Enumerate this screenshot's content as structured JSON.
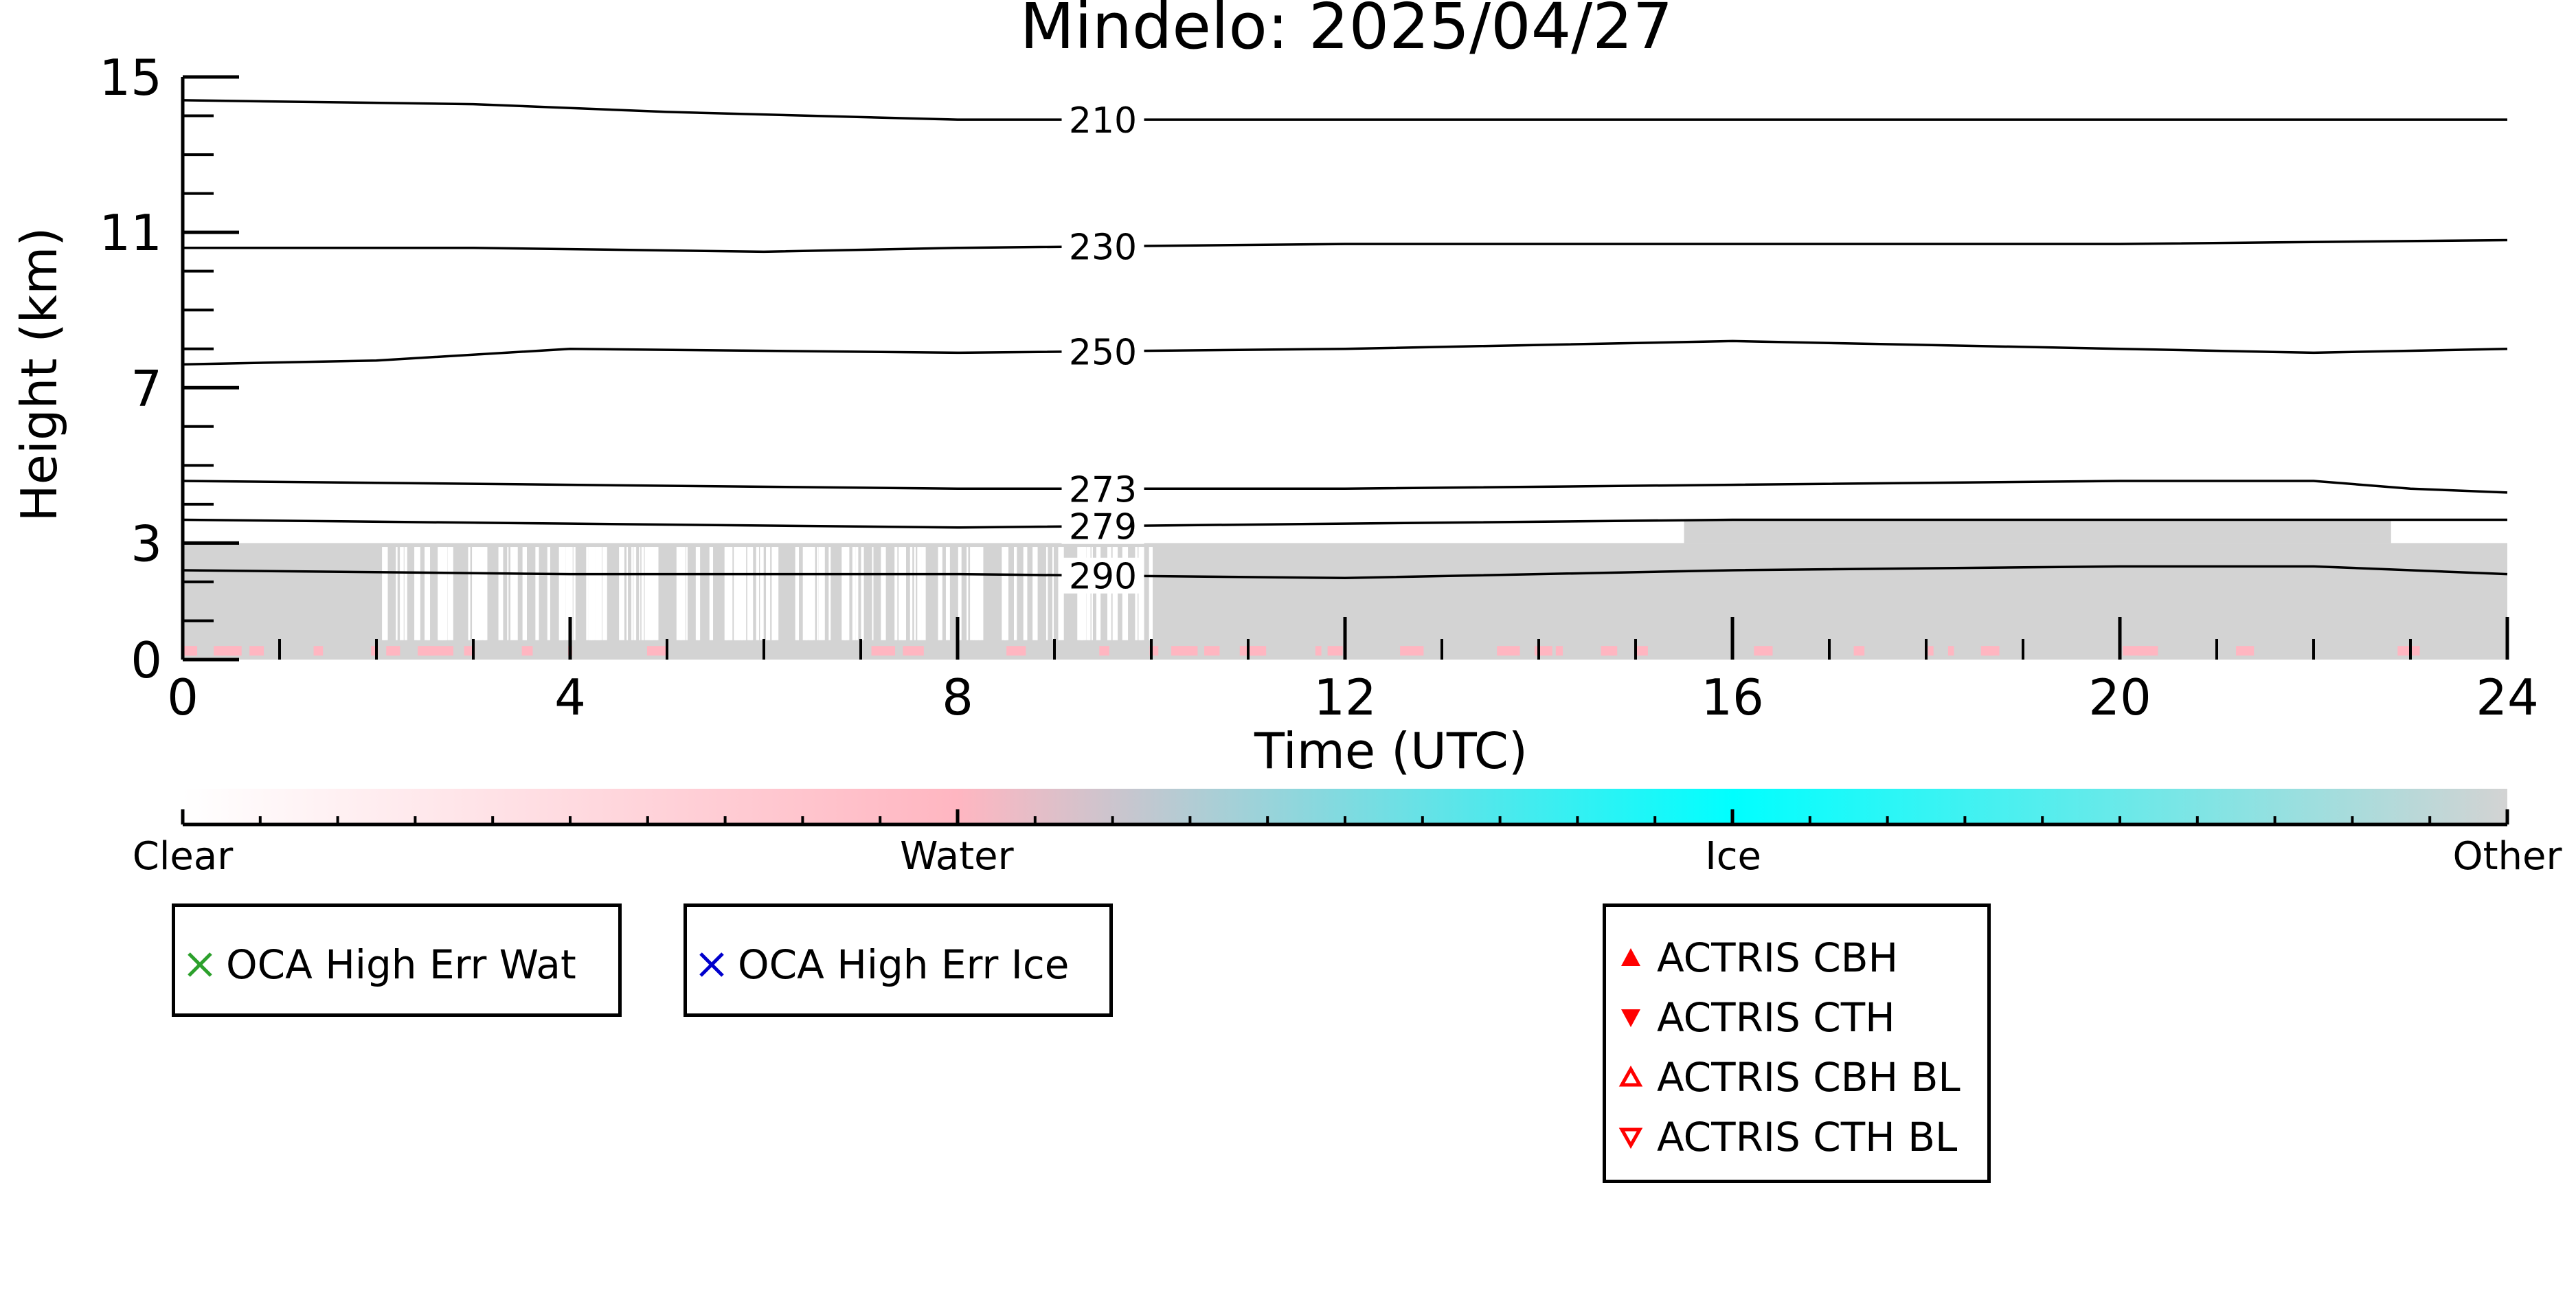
{
  "chart_data": {
    "type": "heatmap",
    "title": "Mindelo: 2025/04/27",
    "xlabel": "Time (UTC)",
    "ylabel": "Height (km)",
    "xlim": [
      0,
      24
    ],
    "ylim": [
      0,
      15
    ],
    "xticks": [
      0,
      4,
      8,
      12,
      16,
      20,
      24
    ],
    "yticks": [
      0,
      3,
      7,
      11,
      15
    ],
    "contours": [
      {
        "label": "210",
        "x": [
          0,
          3,
          5,
          8,
          12,
          16,
          20,
          24
        ],
        "y": [
          14.4,
          14.3,
          14.1,
          13.9,
          13.9,
          13.9,
          13.9,
          13.9
        ]
      },
      {
        "label": "230",
        "x": [
          0,
          3,
          6,
          8,
          12,
          16,
          20,
          24
        ],
        "y": [
          10.6,
          10.6,
          10.5,
          10.6,
          10.7,
          10.7,
          10.7,
          10.8
        ]
      },
      {
        "label": "250",
        "x": [
          0,
          2,
          4,
          8,
          12,
          16,
          20,
          22,
          24
        ],
        "y": [
          7.6,
          7.7,
          8.0,
          7.9,
          8.0,
          8.2,
          8.0,
          7.9,
          8.0
        ]
      },
      {
        "label": "273",
        "x": [
          0,
          4,
          8,
          12,
          16,
          20,
          22,
          23,
          24
        ],
        "y": [
          4.6,
          4.5,
          4.4,
          4.4,
          4.5,
          4.6,
          4.6,
          4.4,
          4.3
        ]
      },
      {
        "label": "279",
        "x": [
          0,
          4,
          8,
          12,
          16,
          20,
          22,
          24
        ],
        "y": [
          3.6,
          3.5,
          3.4,
          3.5,
          3.6,
          3.6,
          3.6,
          3.6
        ]
      },
      {
        "label": "290",
        "x": [
          0,
          4,
          8,
          12,
          16,
          20,
          22,
          24
        ],
        "y": [
          2.3,
          2.2,
          2.2,
          2.1,
          2.3,
          2.4,
          2.4,
          2.2
        ]
      }
    ],
    "colorbar": {
      "labels": [
        "Clear",
        "Water",
        "Ice",
        "Other"
      ],
      "positions": [
        0,
        0.333,
        0.667,
        1.0
      ],
      "colors": [
        "#ffffff",
        "#ffb6c1",
        "#00ffff",
        "#d3d3d3"
      ]
    },
    "legends": [
      {
        "entries": [
          {
            "label": "OCA High Err Wat",
            "marker": "x-icon",
            "color": "#2ca02c"
          }
        ]
      },
      {
        "entries": [
          {
            "label": "OCA High Err Ice",
            "marker": "x-icon",
            "color": "#0000cc"
          }
        ]
      },
      {
        "entries": [
          {
            "label": "ACTRIS CBH",
            "marker": "triangle-up-filled-icon",
            "color": "#ff0000"
          },
          {
            "label": "ACTRIS CTH",
            "marker": "triangle-down-filled-icon",
            "color": "#ff0000"
          },
          {
            "label": "ACTRIS CBH BL",
            "marker": "triangle-up-open-icon",
            "color": "#ff0000"
          },
          {
            "label": "ACTRIS CTH BL",
            "marker": "triangle-down-open-icon",
            "color": "#ff0000"
          }
        ]
      }
    ]
  }
}
